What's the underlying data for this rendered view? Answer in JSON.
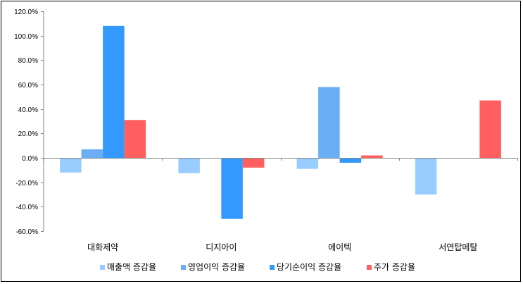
{
  "chart_data": {
    "type": "bar",
    "categories": [
      "대화제약",
      "디지아이",
      "에이텍",
      "서연탑메탈"
    ],
    "series": [
      {
        "name": "매출액 증감율",
        "color": "#99ccff",
        "values": [
          -12.0,
          -12.5,
          -9.0,
          -30.0
        ]
      },
      {
        "name": "영업이익 증감율",
        "color": "#6aaef5",
        "values": [
          7.0,
          0.0,
          58.0,
          0.0
        ]
      },
      {
        "name": "당기순이익 증감율",
        "color": "#3399ff",
        "values": [
          108.0,
          -50.0,
          -4.0,
          0.0
        ]
      },
      {
        "name": "주가 증감율",
        "color": "#ff5f5f",
        "values": [
          31.0,
          -8.0,
          2.0,
          47.0
        ]
      }
    ],
    "ylim": [
      -60,
      120
    ],
    "yticks": [
      -60,
      -40,
      -20,
      0,
      20,
      40,
      60,
      80,
      100,
      120
    ],
    "ytick_labels": [
      "-60.0%",
      "-40.0%",
      "-20.0%",
      "0.0%",
      "20.0%",
      "40.0%",
      "60.0%",
      "80.0%",
      "100.0%",
      "120.0%"
    ],
    "title": "",
    "xlabel": "",
    "ylabel": "",
    "grid": false,
    "legend_position": "bottom"
  }
}
